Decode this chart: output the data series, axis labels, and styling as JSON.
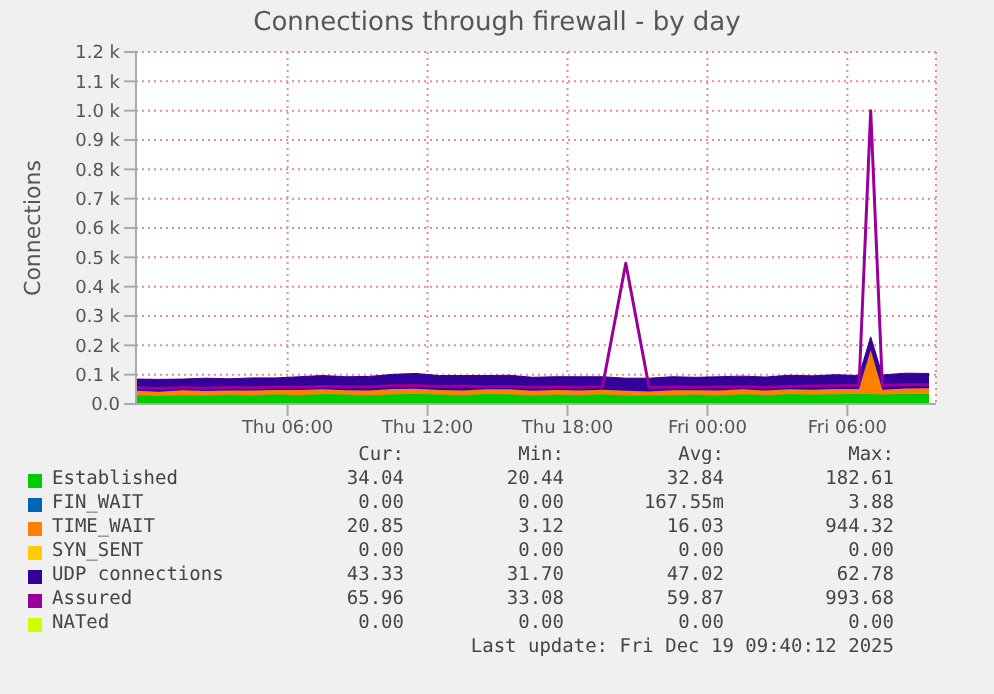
{
  "chart_data": {
    "type": "area",
    "title": "Connections through firewall - by day",
    "ylabel": "Connections",
    "stacked": true,
    "grid": true,
    "legend": "bottom",
    "x": [
      "2025-12-17T23:30",
      "2025-12-18T00:30",
      "2025-12-18T01:30",
      "2025-12-18T02:30",
      "2025-12-18T03:30",
      "2025-12-18T04:30",
      "2025-12-18T05:30",
      "2025-12-18T06:30",
      "2025-12-18T07:30",
      "2025-12-18T08:30",
      "2025-12-18T09:30",
      "2025-12-18T10:30",
      "2025-12-18T11:30",
      "2025-12-18T12:30",
      "2025-12-18T13:30",
      "2025-12-18T14:30",
      "2025-12-18T15:30",
      "2025-12-18T16:30",
      "2025-12-18T17:30",
      "2025-12-18T18:30",
      "2025-12-18T19:30",
      "2025-12-18T20:30",
      "2025-12-18T21:30",
      "2025-12-18T22:30",
      "2025-12-18T23:30",
      "2025-12-19T00:30",
      "2025-12-19T01:30",
      "2025-12-19T02:30",
      "2025-12-19T03:30",
      "2025-12-19T04:30",
      "2025-12-19T05:30",
      "2025-12-19T06:30",
      "2025-12-19T07:00",
      "2025-12-19T07:30",
      "2025-12-19T08:30",
      "2025-12-19T09:30"
    ],
    "xlim": [
      "2025-12-17T23:30",
      "2025-12-19T09:48"
    ],
    "xticks": [
      {
        "value": "2025-12-18T06:00",
        "label": "Thu 06:00"
      },
      {
        "value": "2025-12-18T12:00",
        "label": "Thu 12:00"
      },
      {
        "value": "2025-12-18T18:00",
        "label": "Thu 18:00"
      },
      {
        "value": "2025-12-19T00:00",
        "label": "Fri 00:00"
      },
      {
        "value": "2025-12-19T06:00",
        "label": "Fri 06:00"
      }
    ],
    "ylim": [
      0,
      1200
    ],
    "yticks": [
      {
        "value": 0,
        "label": "0.0"
      },
      {
        "value": 100,
        "label": "0.1 k"
      },
      {
        "value": 200,
        "label": "0.2 k"
      },
      {
        "value": 300,
        "label": "0.3 k"
      },
      {
        "value": 400,
        "label": "0.4 k"
      },
      {
        "value": 500,
        "label": "0.5 k"
      },
      {
        "value": 600,
        "label": "0.6 k"
      },
      {
        "value": 700,
        "label": "0.7 k"
      },
      {
        "value": 800,
        "label": "0.8 k"
      },
      {
        "value": 900,
        "label": "0.9 k"
      },
      {
        "value": 1000,
        "label": "1.0 k"
      },
      {
        "value": 1100,
        "label": "1.1 k"
      },
      {
        "value": 1200,
        "label": "1.2 k"
      }
    ],
    "series": [
      {
        "name": "Established",
        "color": "#00cc00",
        "values": [
          30,
          28,
          31,
          29,
          32,
          30,
          33,
          31,
          34,
          32,
          30,
          33,
          35,
          32,
          31,
          34,
          33,
          30,
          32,
          31,
          33,
          30,
          29,
          31,
          32,
          30,
          33,
          31,
          34,
          32,
          33,
          35,
          34,
          32,
          35,
          34
        ]
      },
      {
        "name": "FIN_WAIT",
        "color": "#0066b3",
        "values": [
          null,
          null,
          null,
          null,
          null,
          null,
          null,
          null,
          null,
          null,
          null,
          null,
          null,
          null,
          null,
          null,
          null,
          null,
          null,
          null,
          null,
          null,
          null,
          null,
          null,
          null,
          null,
          null,
          null,
          null,
          null,
          null,
          null,
          null,
          null,
          null
        ]
      },
      {
        "name": "TIME_WAIT",
        "color": "#ff8000",
        "values": [
          15,
          14,
          16,
          15,
          14,
          16,
          15,
          17,
          16,
          15,
          16,
          18,
          17,
          16,
          15,
          16,
          17,
          15,
          16,
          15,
          16,
          15,
          14,
          16,
          15,
          16,
          17,
          15,
          16,
          17,
          18,
          16,
          150,
          17,
          18,
          20
        ]
      },
      {
        "name": "SYN_SENT",
        "color": "#ffcc00",
        "values": [
          null,
          null,
          null,
          null,
          null,
          null,
          null,
          null,
          null,
          null,
          null,
          null,
          null,
          null,
          null,
          null,
          null,
          null,
          null,
          null,
          null,
          null,
          null,
          null,
          null,
          null,
          null,
          null,
          null,
          null,
          null,
          null,
          null,
          null,
          null,
          null
        ]
      },
      {
        "name": "UDP connections",
        "color": "#330099",
        "values": [
          40,
          42,
          38,
          44,
          40,
          43,
          41,
          45,
          47,
          46,
          48,
          50,
          52,
          49,
          51,
          47,
          48,
          46,
          45,
          47,
          44,
          43,
          45,
          46,
          44,
          47,
          45,
          46,
          48,
          47,
          49,
          46,
          45,
          50,
          52,
          50
        ]
      },
      {
        "name": "Assured",
        "color": "#990099",
        "type": "line",
        "values": [
          55,
          53,
          56,
          54,
          57,
          55,
          58,
          57,
          60,
          59,
          58,
          62,
          63,
          60,
          61,
          59,
          60,
          57,
          58,
          57,
          59,
          480,
          56,
          58,
          57,
          58,
          59,
          57,
          60,
          61,
          62,
          64,
          1000,
          63,
          66,
          66
        ]
      },
      {
        "name": "NATed",
        "color": "#ccff00",
        "type": "line",
        "values": [
          null,
          null,
          null,
          null,
          null,
          null,
          null,
          null,
          null,
          null,
          null,
          null,
          null,
          null,
          null,
          null,
          null,
          null,
          null,
          null,
          null,
          null,
          null,
          null,
          null,
          null,
          null,
          null,
          null,
          null,
          null,
          null,
          null,
          null,
          null,
          null
        ]
      }
    ],
    "annotations": [
      "Cur:",
      "Min:",
      "Avg:",
      "Max:",
      "34.04",
      "20.44",
      "32.84",
      "182.61",
      "0.00",
      "0.00",
      "167.55m",
      "3.88",
      "20.85",
      "3.12",
      "16.03",
      "944.32",
      "0.00",
      "0.00",
      "0.00",
      "0.00",
      "43.33",
      "31.70",
      "47.02",
      "62.78",
      "65.96",
      "33.08",
      "59.87",
      "993.68",
      "0.00",
      "0.00",
      "0.00",
      "0.00",
      "Last update: Fri Dec 19 09:40:12 2025"
    ]
  }
}
